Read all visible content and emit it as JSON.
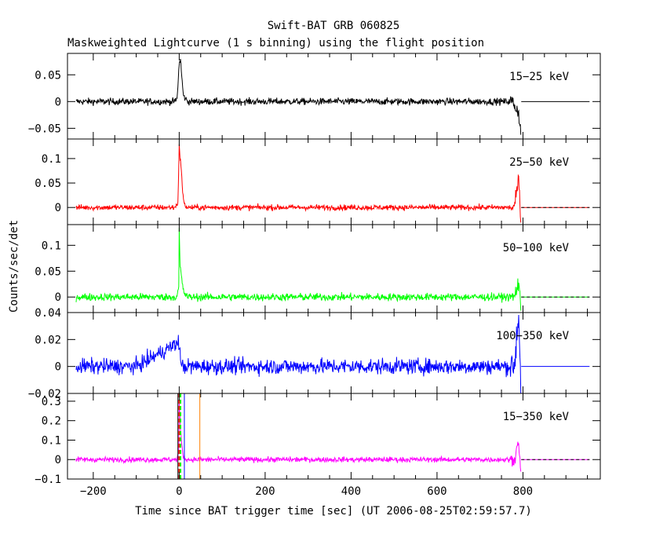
{
  "chart_data": [
    {
      "type": "line",
      "title": "Swift-BAT GRB 060825",
      "subtitle": "Maskweighted Lightcurve (1 s binning) using the flight position",
      "xlabel": "Time since BAT trigger time [sec] (UT 2006-08-25T02:59:57.7)",
      "ylabel": "Counts/sec/det",
      "xlim": [
        -260,
        980
      ],
      "xticks": [
        -200,
        0,
        200,
        400,
        600,
        800
      ],
      "xtick_labels": [
        "−200",
        "0",
        "200",
        "400",
        "600",
        "800"
      ],
      "panels": [
        {
          "band": "15−25 keV",
          "color": "#000000",
          "ylim": [
            -0.07,
            0.09
          ],
          "yticks": [
            -0.05,
            0,
            0.05
          ],
          "ytick_labels": [
            "−0.05",
            "0",
            "0.05"
          ],
          "noise_sigma": 0.006,
          "peak": 0.08,
          "series": [
            {
              "x": [
                -240,
                -200,
                -100,
                -10,
                -5,
                0,
                3,
                6,
                10,
                20,
                100,
                200,
                300,
                400,
                500,
                600,
                700,
                775,
                790,
                795,
                800,
                980
              ],
              "y": [
                0,
                0,
                0,
                0,
                0.005,
                0.07,
                0.08,
                0.045,
                0.01,
                0,
                0,
                0,
                0,
                0,
                0,
                0,
                0,
                0,
                -0.02,
                -0.06,
                0,
                0
              ]
            }
          ]
        },
        {
          "band": "25−50 keV",
          "color": "#ff0000",
          "ylim": [
            -0.035,
            0.14
          ],
          "yticks": [
            0,
            0.05,
            0.1
          ],
          "ytick_labels": [
            "0",
            "0.05",
            "0.1"
          ],
          "noise_sigma": 0.0055,
          "peak": 0.125,
          "series": [
            {
              "x": [
                -240,
                -100,
                -10,
                -3,
                0,
                2,
                5,
                8,
                12,
                20,
                200,
                400,
                600,
                780,
                790,
                795,
                800,
                980
              ],
              "y": [
                0,
                0,
                0,
                0.01,
                0.125,
                0.1,
                0.08,
                0.03,
                0.005,
                0,
                0,
                0,
                0,
                0,
                0.06,
                -0.03,
                0,
                0
              ]
            }
          ]
        },
        {
          "band": "50−100 keV",
          "color": "#00ff00",
          "ylim": [
            -0.03,
            0.14
          ],
          "yticks": [
            0,
            0.05,
            0.1
          ],
          "ytick_labels": [
            "0",
            "0.05",
            "0.1"
          ],
          "noise_sigma": 0.007,
          "peak": 0.13,
          "series": [
            {
              "x": [
                -240,
                -100,
                -5,
                -1,
                0,
                2,
                5,
                10,
                20,
                200,
                400,
                600,
                780,
                790,
                795,
                800,
                980
              ],
              "y": [
                0,
                0,
                0,
                0.02,
                0.13,
                0.06,
                0.04,
                0.01,
                0,
                0,
                0,
                0,
                0,
                0.03,
                -0.025,
                0,
                0
              ]
            }
          ]
        },
        {
          "band": "100−350 keV",
          "color": "#0000ff",
          "ylim": [
            -0.02,
            0.04
          ],
          "yticks": [
            -0.02,
            0,
            0.02,
            0.04
          ],
          "ytick_labels": [
            "−0.02",
            "0",
            "0.02",
            "0.04"
          ],
          "noise_sigma": 0.0055,
          "peak": 0.02,
          "series": [
            {
              "x": [
                -240,
                -100,
                0,
                2,
                5,
                200,
                400,
                600,
                780,
                790,
                795,
                800,
                980
              ],
              "y": [
                0,
                0,
                0.018,
                0.01,
                0,
                0,
                0,
                0,
                0,
                0.04,
                -0.015,
                0,
                0
              ]
            }
          ]
        },
        {
          "band": "15−350 keV",
          "color": "#ff00ff",
          "ylim": [
            -0.1,
            0.34
          ],
          "yticks": [
            -0.1,
            0,
            0.1,
            0.2,
            0.3
          ],
          "ytick_labels": [
            "−0.1",
            "0",
            "0.1",
            "0.2",
            "0.3"
          ],
          "noise_sigma": 0.013,
          "peak": 0.3,
          "series": [
            {
              "x": [
                -240,
                -100,
                -5,
                -1,
                0,
                1,
                3,
                6,
                10,
                20,
                200,
                400,
                600,
                780,
                790,
                795,
                800,
                980
              ],
              "y": [
                0,
                0,
                0,
                0.05,
                0.3,
                0.26,
                0.15,
                0.08,
                0.01,
                0,
                0,
                0,
                0,
                0,
                0.1,
                -0.08,
                0,
                0
              ]
            }
          ],
          "vertical_markers": [
            {
              "x": -3,
              "color": "#000000",
              "style": "solid"
            },
            {
              "x": 0,
              "color": "#ff0000",
              "style": "dashed"
            },
            {
              "x": 3,
              "color": "#00ff00",
              "style": "dashed"
            },
            {
              "x": 12,
              "color": "#0000ff",
              "style": "solid"
            },
            {
              "x": 48,
              "color": "#ff8000",
              "style": "solid"
            }
          ]
        }
      ]
    }
  ]
}
